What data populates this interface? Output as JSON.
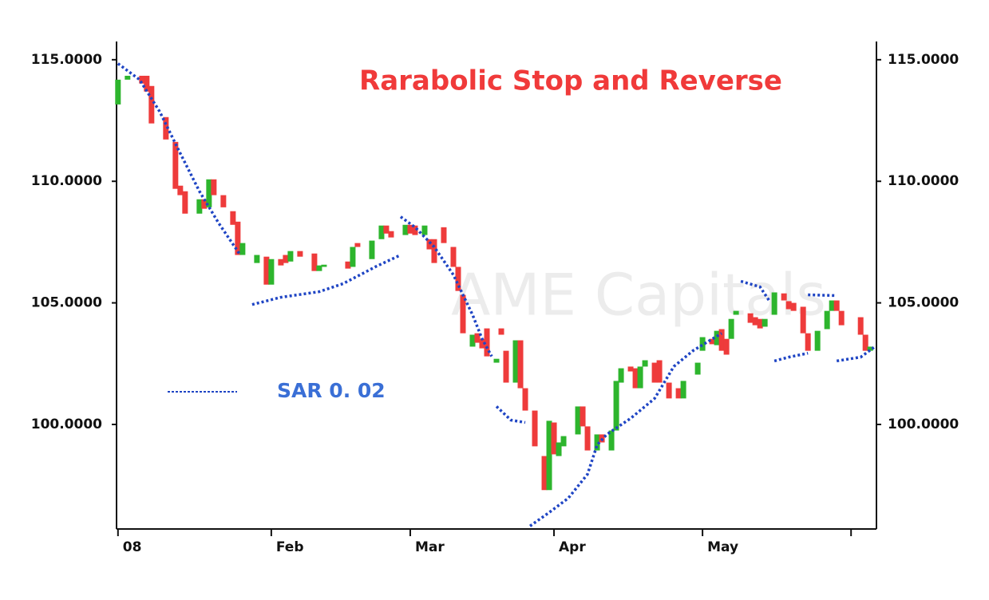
{
  "chart_data": {
    "type": "candlestick",
    "title": "Rarabolic Stop and Reverse",
    "watermark": "AME Capitals",
    "up_color": "#2db52d",
    "down_color": "#ee3b3b",
    "x": [
      0,
      2,
      5,
      6,
      7,
      10,
      12,
      13,
      14,
      17,
      18,
      19,
      20,
      22,
      24,
      25,
      26,
      29,
      31,
      32,
      34,
      35,
      36,
      38,
      41,
      42,
      43,
      48,
      49,
      50,
      53,
      55,
      56,
      57,
      60,
      61,
      62,
      64,
      65,
      66,
      68,
      70,
      71,
      72,
      74,
      75,
      76,
      77,
      79,
      80,
      81,
      83,
      84,
      85,
      87,
      89,
      90,
      91,
      92,
      93,
      96,
      97,
      98,
      100,
      101,
      103,
      104,
      105,
      107,
      108,
      109,
      110,
      112,
      113,
      115,
      117,
      118,
      121,
      122,
      124,
      125,
      126,
      127,
      128,
      129,
      132,
      133,
      134,
      135,
      137,
      139,
      140,
      141,
      143,
      144,
      146,
      148,
      149,
      150,
      151,
      155,
      156,
      157
    ],
    "open": [
      113.16,
      114.18,
      114.34,
      114.34,
      113.92,
      112.64,
      111.62,
      109.82,
      109.59,
      108.67,
      109.26,
      108.93,
      110.08,
      109.43,
      108.77,
      108.34,
      106.97,
      106.64,
      106.9,
      105.75,
      106.8,
      106.97,
      106.7,
      107.13,
      107.03,
      106.31,
      106.48,
      106.7,
      106.48,
      107.46,
      106.8,
      107.62,
      108.18,
      107.95,
      107.79,
      108.21,
      108.18,
      107.79,
      107.62,
      107.62,
      108.11,
      107.3,
      106.48,
      105.33,
      103.2,
      103.75,
      103.52,
      103.95,
      102.54,
      103.95,
      103.03,
      101.72,
      103.46,
      101.49,
      100.57,
      98.7,
      97.3,
      100.08,
      98.7,
      99.1,
      99.59,
      100.74,
      99.92,
      98.93,
      99.59,
      98.93,
      99.75,
      101.72,
      102.38,
      102.31,
      101.49,
      102.38,
      102.54,
      102.64,
      101.72,
      101.49,
      101.07,
      102.05,
      103.03,
      103.52,
      103.26,
      103.92,
      103.52,
      103.52,
      104.51,
      104.57,
      104.41,
      104.34,
      104.02,
      104.51,
      105.39,
      105.07,
      105.0,
      104.84,
      103.75,
      103.03,
      103.92,
      104.67,
      105.1,
      104.67,
      104.41,
      103.69,
      103.03
    ],
    "close": [
      114.18,
      114.34,
      114.02,
      113.69,
      112.38,
      111.72,
      109.69,
      109.43,
      108.67,
      109.26,
      108.87,
      110.08,
      109.43,
      108.93,
      108.21,
      106.97,
      107.46,
      106.97,
      105.75,
      106.8,
      106.54,
      106.64,
      107.13,
      106.9,
      106.31,
      106.54,
      106.57,
      106.41,
      107.3,
      107.3,
      107.56,
      108.18,
      107.85,
      107.69,
      108.21,
      107.85,
      107.79,
      108.18,
      107.2,
      106.64,
      107.46,
      106.48,
      105.49,
      103.75,
      103.69,
      103.36,
      103.13,
      102.8,
      102.7,
      103.69,
      101.72,
      103.46,
      101.49,
      100.57,
      99.1,
      97.3,
      100.15,
      98.77,
      99.26,
      99.52,
      100.74,
      99.92,
      98.93,
      99.59,
      99.26,
      99.75,
      101.79,
      102.31,
      102.18,
      101.49,
      102.38,
      102.64,
      101.72,
      101.72,
      101.07,
      101.07,
      101.79,
      102.54,
      103.59,
      103.3,
      103.85,
      103.03,
      102.87,
      104.34,
      104.67,
      104.18,
      104.08,
      103.95,
      104.34,
      105.43,
      105.1,
      104.74,
      104.67,
      103.75,
      103.03,
      103.85,
      104.67,
      105.1,
      104.67,
      104.08,
      103.69,
      103.03,
      103.2
    ],
    "sar": {
      "name": "SAR 0. 02",
      "color": "#1f45c4",
      "x": [
        0,
        4.5,
        8.7,
        12.8,
        17,
        21,
        25.3,
        null,
        28,
        34,
        42,
        47,
        54,
        59,
        null,
        59,
        62,
        66,
        70,
        74,
        76,
        78,
        null,
        79,
        82,
        85,
        null,
        86,
        90,
        94,
        98,
        100,
        102,
        107,
        112,
        116,
        120,
        126,
        null,
        130,
        134,
        136,
        null,
        137,
        140,
        144,
        null,
        144,
        150,
        null,
        150,
        155,
        158
      ],
      "values": [
        114.84,
        114.18,
        112.87,
        111.23,
        109.59,
        108.28,
        107.03,
        null,
        104.93,
        105.23,
        105.46,
        105.79,
        106.51,
        106.97,
        null,
        108.54,
        108.11,
        107.3,
        106.15,
        104.51,
        103.52,
        102.8,
        null,
        100.74,
        100.18,
        100.08,
        null,
        95.82,
        96.38,
        96.97,
        97.95,
        99.16,
        99.59,
        100.25,
        101.07,
        102.38,
        103.03,
        103.75,
        null,
        105.89,
        105.66,
        105.07,
        null,
        102.61,
        102.77,
        102.93,
        null,
        105.33,
        105.3,
        null,
        102.61,
        102.77,
        103.2
      ]
    },
    "legend_color": "#3a6fd6",
    "xlim": [
      -0.3,
      158.3
    ],
    "xticks": [
      {
        "value": 0,
        "label": "08"
      },
      {
        "value": 32,
        "label": "Feb"
      },
      {
        "value": 61,
        "label": "Mar"
      },
      {
        "value": 91,
        "label": "Apr"
      },
      {
        "value": 122,
        "label": "May"
      },
      {
        "value": 153,
        "label": null
      }
    ],
    "ylim": [
      95.7,
      115.75
    ],
    "yticks": [
      {
        "value": 100,
        "label": "100.0000"
      },
      {
        "value": 105,
        "label": "105.0000"
      },
      {
        "value": 110,
        "label": "110.0000"
      },
      {
        "value": 115,
        "label": "115.0000"
      }
    ]
  }
}
